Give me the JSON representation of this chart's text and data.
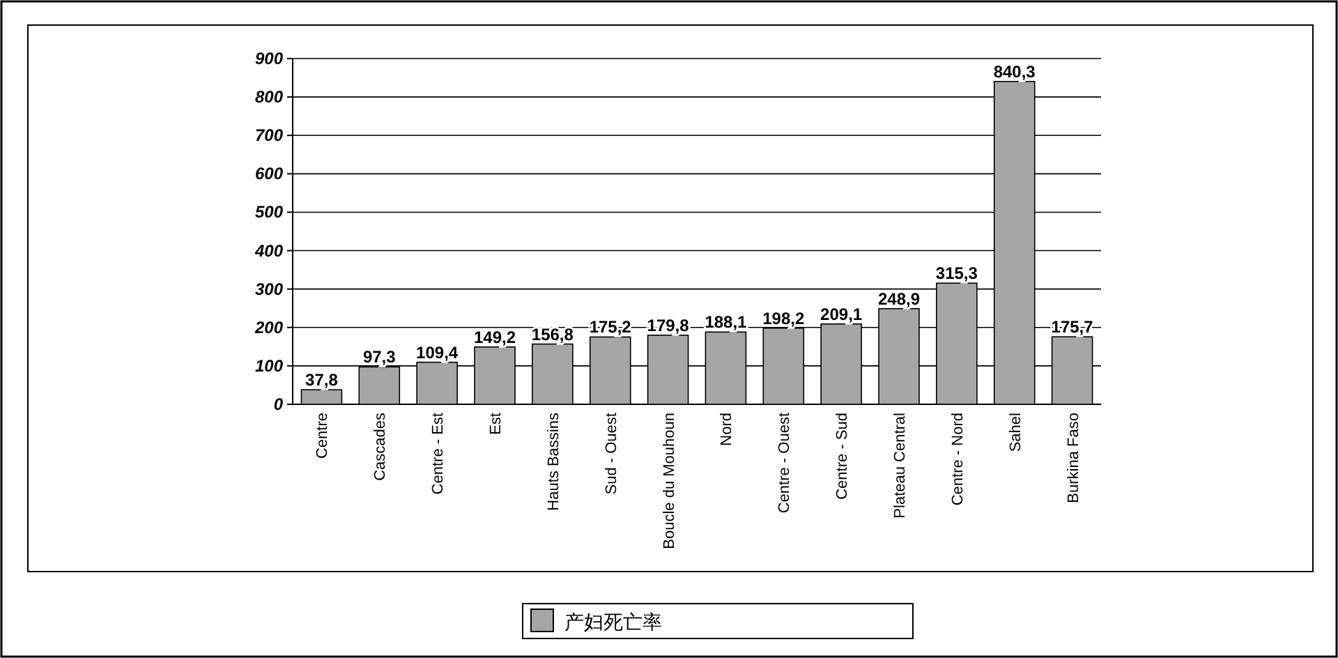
{
  "chart_data": {
    "type": "bar",
    "categories": [
      "Centre",
      "Cascades",
      "Centre - Est",
      "Est",
      "Hauts Bassins",
      "Sud - Ouest",
      "Boucle du Mouhoun",
      "Nord",
      "Centre - Ouest",
      "Centre - Sud",
      "Plateau Central",
      "Centre - Nord",
      "Sahel",
      "Burkina Faso"
    ],
    "series": [
      {
        "name": "产妇死亡率",
        "color": "#a6a6a6",
        "values": [
          37.8,
          97.3,
          109.4,
          149.2,
          156.8,
          175.2,
          179.8,
          188.1,
          198.2,
          209.1,
          248.9,
          315.3,
          840.3,
          175.7
        ],
        "value_labels": [
          "37,8",
          "97,3",
          "109,4",
          "149,2",
          "156,8",
          "175,2",
          "179,8",
          "188,1",
          "198,2",
          "209,1",
          "248,9",
          "315,3",
          "840,3",
          "175,7"
        ]
      }
    ],
    "ylim": [
      0,
      900
    ],
    "yticks": [
      0,
      100,
      200,
      300,
      400,
      500,
      600,
      700,
      800,
      900
    ],
    "grid": "y",
    "legend": "bottom"
  }
}
